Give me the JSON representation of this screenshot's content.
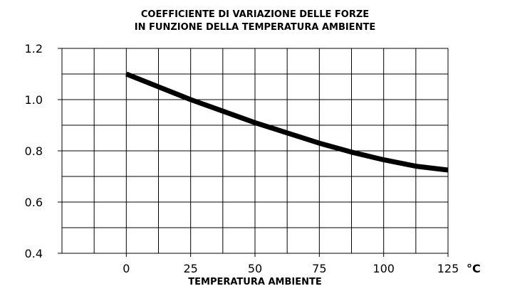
{
  "chart_data": {
    "type": "line",
    "title": [
      "COEFFICIENTE DI VARIAZIONE DELLE FORZE",
      "IN FUNZIONE DELLA TEMPERATURA AMBIENTE"
    ],
    "x_label": "TEMPERATURA AMBIENTE",
    "x_unit": "°C",
    "x": [
      0,
      12.5,
      25,
      37.5,
      50,
      62.5,
      75,
      87.5,
      100,
      112.5,
      125
    ],
    "series": [
      {
        "color": "#000000",
        "values": [
          1.1,
          1.05,
          1.0,
          0.955,
          0.91,
          0.87,
          0.83,
          0.795,
          0.765,
          0.74,
          0.725
        ]
      }
    ],
    "xlim": [
      -25,
      125
    ],
    "xticks": [
      0,
      25,
      50,
      75,
      100,
      125
    ],
    "x_grid": [
      -25,
      -12.5,
      0,
      12.5,
      25,
      37.5,
      50,
      62.5,
      75,
      87.5,
      100,
      112.5,
      125
    ],
    "ylim": [
      0.4,
      1.2
    ],
    "yticks": [
      0.4,
      0.6,
      0.8,
      {
        "value": 1,
        "label": "1.0"
      },
      1.2
    ],
    "y_grid": [
      0.4,
      0.5,
      0.6,
      0.7,
      0.8,
      0.9,
      1,
      1.1,
      1.2
    ],
    "grid": true
  }
}
